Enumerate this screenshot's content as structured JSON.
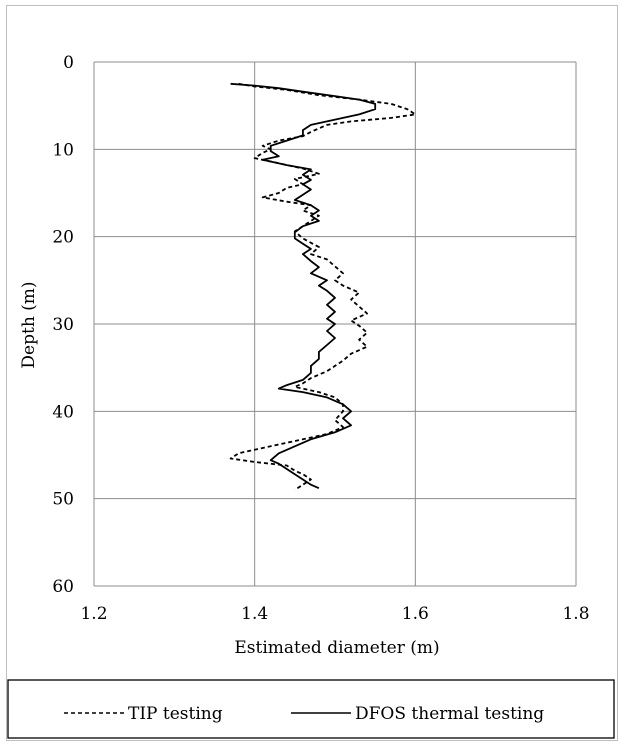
{
  "chart_data": {
    "type": "line",
    "orientation": "depth-profile",
    "title": "",
    "xlabel": "Estimated diameter (m)",
    "ylabel": "Depth (m)",
    "xlim": [
      1.2,
      1.8
    ],
    "ylim": [
      0,
      60
    ],
    "y_inverted": true,
    "x_ticks": [
      "1.2",
      "1.4",
      "1.6",
      "1.8"
    ],
    "y_ticks": [
      "0",
      "10",
      "20",
      "30",
      "40",
      "50",
      "60"
    ],
    "grid": true,
    "legend_position": "bottom",
    "series": [
      {
        "name": "TIP testing",
        "line_style": "dashed",
        "color": "#000000",
        "points": [
          [
            1.38,
            2.5
          ],
          [
            1.4,
            2.8
          ],
          [
            1.44,
            3.2
          ],
          [
            1.48,
            3.8
          ],
          [
            1.53,
            4.3
          ],
          [
            1.57,
            4.8
          ],
          [
            1.59,
            5.4
          ],
          [
            1.6,
            6.0
          ],
          [
            1.57,
            6.4
          ],
          [
            1.52,
            6.8
          ],
          [
            1.49,
            7.2
          ],
          [
            1.47,
            8.0
          ],
          [
            1.46,
            8.5
          ],
          [
            1.43,
            9.0
          ],
          [
            1.41,
            9.6
          ],
          [
            1.42,
            10.0
          ],
          [
            1.41,
            10.4
          ],
          [
            1.4,
            11.0
          ],
          [
            1.43,
            11.6
          ],
          [
            1.46,
            12.2
          ],
          [
            1.48,
            12.8
          ],
          [
            1.45,
            13.4
          ],
          [
            1.46,
            14.0
          ],
          [
            1.44,
            14.4
          ],
          [
            1.43,
            15.0
          ],
          [
            1.41,
            15.5
          ],
          [
            1.44,
            16.0
          ],
          [
            1.47,
            16.4
          ],
          [
            1.46,
            17.0
          ],
          [
            1.48,
            17.6
          ],
          [
            1.47,
            18.2
          ],
          [
            1.46,
            18.8
          ],
          [
            1.45,
            19.4
          ],
          [
            1.46,
            20.2
          ],
          [
            1.48,
            21.2
          ],
          [
            1.47,
            22.0
          ],
          [
            1.49,
            22.6
          ],
          [
            1.5,
            23.4
          ],
          [
            1.51,
            24.2
          ],
          [
            1.5,
            25.0
          ],
          [
            1.51,
            25.6
          ],
          [
            1.53,
            26.4
          ],
          [
            1.52,
            27.2
          ],
          [
            1.53,
            28.0
          ],
          [
            1.54,
            28.8
          ],
          [
            1.52,
            29.6
          ],
          [
            1.53,
            30.2
          ],
          [
            1.54,
            31.0
          ],
          [
            1.53,
            31.8
          ],
          [
            1.54,
            32.6
          ],
          [
            1.52,
            33.4
          ],
          [
            1.51,
            34.2
          ],
          [
            1.5,
            34.8
          ],
          [
            1.49,
            35.4
          ],
          [
            1.47,
            36.2
          ],
          [
            1.46,
            36.8
          ],
          [
            1.45,
            37.2
          ],
          [
            1.48,
            37.8
          ],
          [
            1.5,
            38.4
          ],
          [
            1.51,
            39.2
          ],
          [
            1.51,
            40.0
          ],
          [
            1.5,
            41.0
          ],
          [
            1.51,
            41.8
          ],
          [
            1.49,
            42.6
          ],
          [
            1.45,
            43.4
          ],
          [
            1.41,
            44.2
          ],
          [
            1.38,
            44.8
          ],
          [
            1.37,
            45.4
          ],
          [
            1.4,
            45.8
          ],
          [
            1.44,
            46.2
          ],
          [
            1.45,
            46.8
          ],
          [
            1.46,
            47.2
          ],
          [
            1.47,
            47.8
          ],
          [
            1.46,
            48.4
          ],
          [
            1.45,
            49.0
          ]
        ]
      },
      {
        "name": "DFOS thermal testing",
        "line_style": "solid",
        "color": "#000000",
        "points": [
          [
            1.37,
            2.5
          ],
          [
            1.4,
            2.7
          ],
          [
            1.43,
            3.0
          ],
          [
            1.46,
            3.4
          ],
          [
            1.5,
            3.9
          ],
          [
            1.53,
            4.3
          ],
          [
            1.55,
            4.8
          ],
          [
            1.55,
            5.4
          ],
          [
            1.53,
            6.0
          ],
          [
            1.5,
            6.6
          ],
          [
            1.47,
            7.2
          ],
          [
            1.46,
            7.8
          ],
          [
            1.46,
            8.4
          ],
          [
            1.44,
            9.0
          ],
          [
            1.42,
            9.6
          ],
          [
            1.42,
            10.2
          ],
          [
            1.43,
            10.8
          ],
          [
            1.41,
            11.2
          ],
          [
            1.44,
            11.8
          ],
          [
            1.47,
            12.3
          ],
          [
            1.46,
            12.9
          ],
          [
            1.47,
            13.5
          ],
          [
            1.46,
            14.0
          ],
          [
            1.47,
            14.6
          ],
          [
            1.46,
            15.2
          ],
          [
            1.45,
            15.8
          ],
          [
            1.47,
            16.4
          ],
          [
            1.48,
            17.0
          ],
          [
            1.47,
            17.6
          ],
          [
            1.48,
            18.2
          ],
          [
            1.46,
            18.8
          ],
          [
            1.45,
            19.5
          ],
          [
            1.45,
            20.2
          ],
          [
            1.46,
            20.8
          ],
          [
            1.47,
            21.4
          ],
          [
            1.46,
            22.0
          ],
          [
            1.47,
            22.8
          ],
          [
            1.48,
            23.5
          ],
          [
            1.47,
            24.2
          ],
          [
            1.49,
            25.0
          ],
          [
            1.48,
            25.6
          ],
          [
            1.49,
            26.2
          ],
          [
            1.5,
            27.0
          ],
          [
            1.49,
            27.8
          ],
          [
            1.5,
            28.6
          ],
          [
            1.49,
            29.4
          ],
          [
            1.5,
            30.0
          ],
          [
            1.49,
            30.8
          ],
          [
            1.5,
            31.6
          ],
          [
            1.49,
            32.4
          ],
          [
            1.48,
            33.2
          ],
          [
            1.48,
            34.0
          ],
          [
            1.47,
            34.8
          ],
          [
            1.47,
            35.6
          ],
          [
            1.46,
            36.4
          ],
          [
            1.44,
            37.0
          ],
          [
            1.43,
            37.4
          ],
          [
            1.46,
            37.8
          ],
          [
            1.49,
            38.4
          ],
          [
            1.51,
            39.2
          ],
          [
            1.52,
            40.0
          ],
          [
            1.51,
            40.8
          ],
          [
            1.52,
            41.6
          ],
          [
            1.5,
            42.4
          ],
          [
            1.47,
            43.2
          ],
          [
            1.45,
            44.0
          ],
          [
            1.43,
            44.8
          ],
          [
            1.42,
            45.6
          ],
          [
            1.43,
            46.0
          ],
          [
            1.44,
            46.6
          ],
          [
            1.45,
            47.2
          ],
          [
            1.46,
            47.8
          ],
          [
            1.47,
            48.4
          ],
          [
            1.48,
            48.8
          ]
        ]
      }
    ]
  }
}
